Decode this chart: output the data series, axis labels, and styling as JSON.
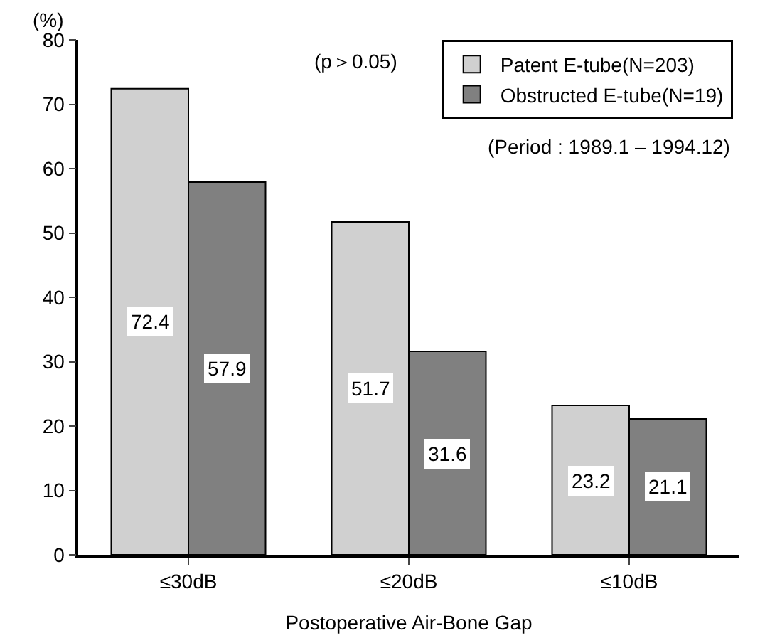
{
  "chart_data": {
    "type": "bar",
    "ylabel": "(%)",
    "xlabel": "Postoperative Air-Bone Gap",
    "categories": [
      "≤30dB",
      "≤20dB",
      "≤10dB"
    ],
    "series": [
      {
        "name": "Patent E-tube(N=203)",
        "color": "#d0d0d0",
        "values": [
          72.4,
          51.7,
          23.2
        ]
      },
      {
        "name": "Obstructed E-tube(N=19)",
        "color": "#808080",
        "values": [
          57.9,
          31.6,
          21.1
        ]
      }
    ],
    "ylim": [
      0,
      80
    ],
    "yticks": [
      0,
      10,
      20,
      30,
      40,
      50,
      60,
      70,
      80
    ],
    "data_labels": true,
    "grid": false,
    "legend": "top right",
    "annotations": [
      "(p＞0.05)",
      "(Period : 1989.1 – 1994.12)"
    ]
  }
}
